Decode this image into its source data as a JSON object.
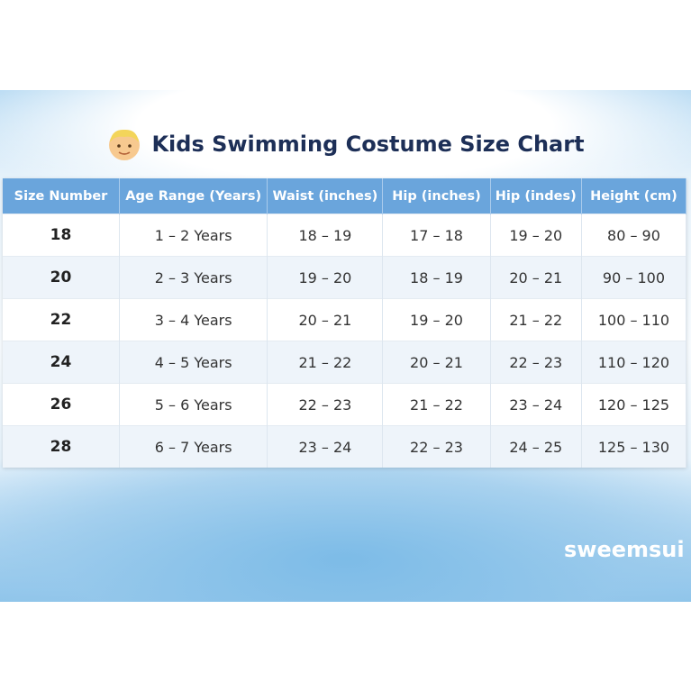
{
  "header": {
    "title": "Kids Swimming Costume Size Chart"
  },
  "table": {
    "columns": [
      "Size Number",
      "Age Range (Years)",
      "Waist (inches)",
      "Hip (inches)",
      "Hip (indes)",
      "Height (cm)"
    ],
    "rows": [
      [
        "18",
        "1 – 2 Years",
        "18 – 19",
        "17 – 18",
        "19 – 20",
        "80 – 90"
      ],
      [
        "20",
        "2 – 3 Years",
        "19 – 20",
        "18 – 19",
        "20 – 21",
        "90 – 100"
      ],
      [
        "22",
        "3 – 4 Years",
        "20 – 21",
        "19 – 20",
        "21 – 22",
        "100 – 110"
      ],
      [
        "24",
        "4 – 5 Years",
        "21 – 22",
        "20 – 21",
        "22 – 23",
        "110 – 120"
      ],
      [
        "26",
        "5 – 6 Years",
        "22 – 23",
        "21 – 22",
        "23 – 24",
        "120 – 125"
      ],
      [
        "28",
        "6 – 7 Years",
        "23 – 24",
        "22 – 23",
        "24 – 25",
        "125 – 130"
      ]
    ]
  },
  "watermark": "sweemsui"
}
